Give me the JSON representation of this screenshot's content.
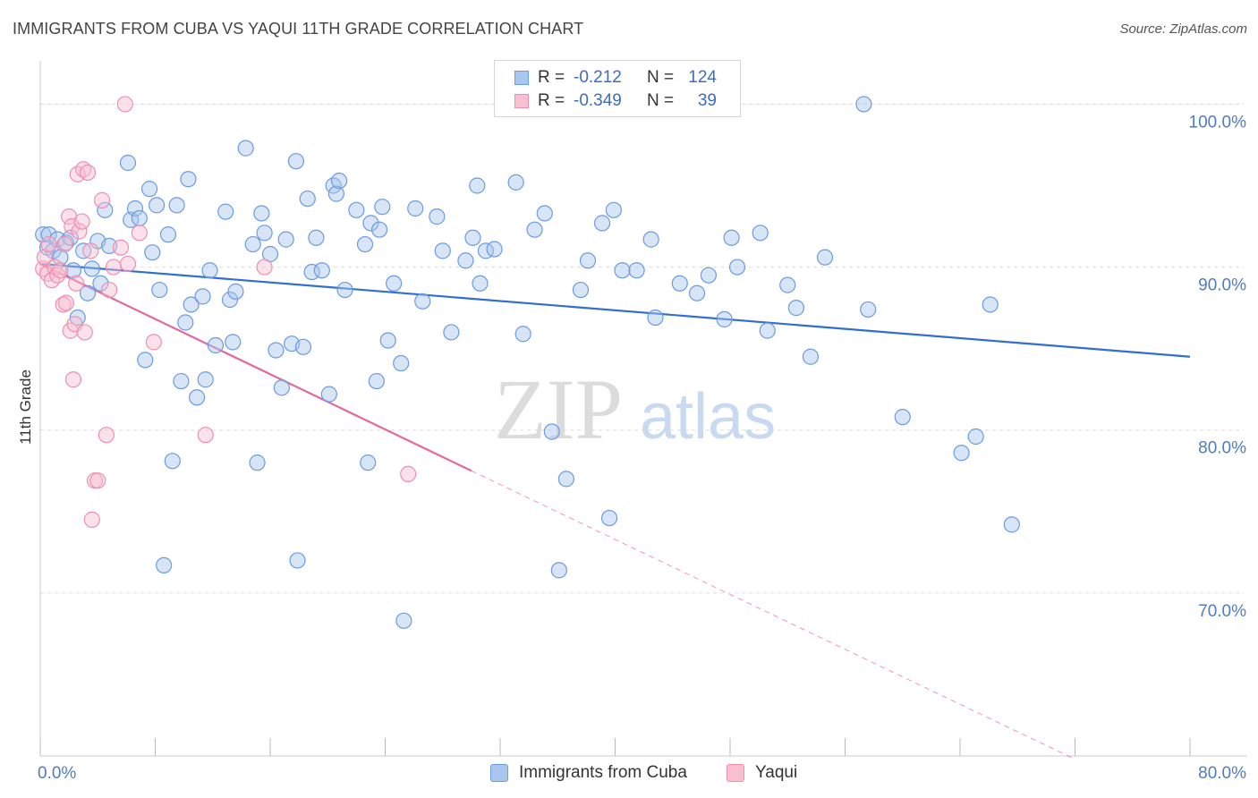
{
  "header": {
    "title": "IMMIGRANTS FROM CUBA VS YAQUI 11TH GRADE CORRELATION CHART",
    "source": "Source: ZipAtlas.com"
  },
  "watermark": {
    "zip": "ZIP",
    "atlas": "atlas"
  },
  "legend": {
    "rows": [
      {
        "r_label": "R =",
        "r_value": "-0.212",
        "n_label": "N =",
        "n_value": "124"
      },
      {
        "r_label": "R =",
        "r_value": "-0.349",
        "n_label": "N =",
        "n_value": "39"
      }
    ]
  },
  "chart_data": {
    "type": "scatter",
    "title": "IMMIGRANTS FROM CUBA VS YAQUI 11TH GRADE CORRELATION CHART",
    "ylabel": "11th Grade",
    "xlabel": "",
    "xlim": [
      0,
      80
    ],
    "ylim": [
      60,
      102
    ],
    "x_tick_labels": [
      "0.0%",
      "80.0%"
    ],
    "y_ticks": [
      70,
      80,
      90,
      100
    ],
    "y_tick_labels": [
      "70.0%",
      "80.0%",
      "90.0%",
      "100.0%"
    ],
    "grid": true,
    "legend_position": "top-center",
    "colors": {
      "cuba_fill": "#a9c6ee",
      "cuba_stroke": "#6b9be0",
      "cuba_line": "#2f6fce",
      "yaqui_fill": "#f7bfd0",
      "yaqui_stroke": "#ee8fb0",
      "yaqui_line": "#e4689a",
      "grid": "#dddddd",
      "axis_label": "#4f7cc4"
    },
    "series": [
      {
        "name": "Immigrants from Cuba",
        "stats": {
          "r": -0.212,
          "n": 124
        },
        "trend": {
          "x0": 0,
          "y0": 90.2,
          "x1": 80,
          "y1": 84.5
        },
        "points": [
          [
            0.2,
            92.0
          ],
          [
            0.5,
            91.2
          ],
          [
            0.6,
            92.0
          ],
          [
            0.9,
            91.0
          ],
          [
            1.2,
            91.7
          ],
          [
            1.4,
            90.6
          ],
          [
            1.8,
            91.5
          ],
          [
            2.1,
            91.8
          ],
          [
            2.3,
            89.8
          ],
          [
            2.6,
            86.9
          ],
          [
            3.0,
            91.0
          ],
          [
            3.3,
            88.4
          ],
          [
            3.6,
            89.9
          ],
          [
            4.0,
            91.6
          ],
          [
            4.2,
            89.0
          ],
          [
            4.5,
            93.5
          ],
          [
            4.8,
            91.3
          ],
          [
            6.1,
            96.4
          ],
          [
            6.3,
            92.9
          ],
          [
            6.6,
            93.6
          ],
          [
            6.9,
            93.0
          ],
          [
            7.3,
            84.3
          ],
          [
            7.6,
            94.8
          ],
          [
            7.8,
            90.9
          ],
          [
            8.1,
            93.8
          ],
          [
            8.3,
            88.6
          ],
          [
            8.6,
            71.7
          ],
          [
            8.9,
            92.0
          ],
          [
            9.2,
            78.1
          ],
          [
            9.5,
            93.8
          ],
          [
            9.8,
            83.0
          ],
          [
            10.1,
            86.6
          ],
          [
            10.3,
            95.4
          ],
          [
            10.5,
            87.7
          ],
          [
            10.9,
            82.0
          ],
          [
            11.3,
            88.2
          ],
          [
            11.5,
            83.1
          ],
          [
            11.8,
            89.8
          ],
          [
            12.2,
            85.2
          ],
          [
            12.9,
            93.4
          ],
          [
            13.2,
            88.0
          ],
          [
            13.4,
            85.4
          ],
          [
            13.6,
            88.5
          ],
          [
            14.3,
            97.3
          ],
          [
            14.8,
            91.4
          ],
          [
            15.1,
            78.0
          ],
          [
            15.4,
            93.3
          ],
          [
            15.6,
            92.1
          ],
          [
            16.0,
            90.8
          ],
          [
            16.4,
            84.9
          ],
          [
            16.8,
            82.6
          ],
          [
            17.1,
            91.7
          ],
          [
            17.5,
            85.3
          ],
          [
            17.8,
            96.5
          ],
          [
            17.9,
            72.0
          ],
          [
            18.3,
            85.1
          ],
          [
            18.6,
            94.2
          ],
          [
            18.9,
            89.7
          ],
          [
            19.2,
            91.8
          ],
          [
            19.6,
            89.8
          ],
          [
            20.1,
            82.2
          ],
          [
            20.4,
            95.0
          ],
          [
            20.6,
            94.5
          ],
          [
            20.8,
            95.3
          ],
          [
            21.2,
            88.6
          ],
          [
            22.0,
            93.5
          ],
          [
            22.6,
            91.4
          ],
          [
            22.8,
            78.0
          ],
          [
            23.0,
            92.7
          ],
          [
            23.4,
            83.0
          ],
          [
            23.6,
            92.3
          ],
          [
            23.8,
            93.7
          ],
          [
            24.2,
            85.5
          ],
          [
            24.6,
            89.0
          ],
          [
            25.1,
            84.1
          ],
          [
            25.3,
            68.3
          ],
          [
            26.1,
            93.6
          ],
          [
            26.6,
            87.9
          ],
          [
            27.6,
            93.1
          ],
          [
            28.0,
            91.0
          ],
          [
            28.6,
            86.0
          ],
          [
            29.6,
            90.4
          ],
          [
            30.1,
            91.8
          ],
          [
            30.4,
            95.0
          ],
          [
            30.6,
            89.0
          ],
          [
            31.0,
            91.0
          ],
          [
            31.6,
            91.1
          ],
          [
            33.1,
            95.2
          ],
          [
            33.6,
            85.9
          ],
          [
            34.4,
            92.3
          ],
          [
            35.1,
            93.3
          ],
          [
            35.6,
            79.9
          ],
          [
            36.1,
            71.4
          ],
          [
            36.6,
            77.0
          ],
          [
            37.6,
            88.6
          ],
          [
            38.1,
            90.4
          ],
          [
            39.1,
            92.7
          ],
          [
            39.6,
            74.6
          ],
          [
            39.9,
            93.5
          ],
          [
            40.5,
            89.8
          ],
          [
            41.5,
            89.8
          ],
          [
            42.5,
            91.7
          ],
          [
            42.8,
            86.9
          ],
          [
            44.5,
            89.0
          ],
          [
            45.7,
            88.4
          ],
          [
            46.5,
            89.5
          ],
          [
            47.6,
            86.8
          ],
          [
            48.1,
            91.8
          ],
          [
            48.5,
            90.0
          ],
          [
            50.1,
            92.1
          ],
          [
            50.6,
            86.1
          ],
          [
            52.0,
            88.9
          ],
          [
            52.6,
            87.5
          ],
          [
            53.6,
            84.5
          ],
          [
            54.6,
            90.6
          ],
          [
            57.3,
            100.0
          ],
          [
            57.6,
            87.4
          ],
          [
            60.0,
            80.8
          ],
          [
            64.1,
            78.6
          ],
          [
            65.1,
            79.6
          ],
          [
            66.1,
            87.7
          ],
          [
            67.6,
            74.2
          ]
        ]
      },
      {
        "name": "Yaqui",
        "stats": {
          "r": -0.349,
          "n": 39
        },
        "trend": {
          "x0": 0,
          "y0": 90.2,
          "x1": 30,
          "y1": 77.5,
          "dash_x1": 72,
          "dash_y1": 59.8
        },
        "points": [
          [
            0.2,
            89.9
          ],
          [
            0.3,
            90.6
          ],
          [
            0.5,
            89.6
          ],
          [
            0.6,
            91.4
          ],
          [
            0.8,
            89.2
          ],
          [
            1.0,
            90.0
          ],
          [
            1.2,
            89.5
          ],
          [
            1.4,
            89.8
          ],
          [
            1.6,
            87.7
          ],
          [
            1.7,
            91.4
          ],
          [
            1.8,
            87.8
          ],
          [
            2.0,
            93.1
          ],
          [
            2.1,
            86.1
          ],
          [
            2.2,
            92.5
          ],
          [
            2.3,
            83.1
          ],
          [
            2.4,
            86.5
          ],
          [
            2.5,
            89.0
          ],
          [
            2.6,
            95.7
          ],
          [
            2.7,
            92.2
          ],
          [
            2.9,
            92.8
          ],
          [
            3.0,
            96.0
          ],
          [
            3.1,
            86.0
          ],
          [
            3.3,
            95.8
          ],
          [
            3.5,
            91.0
          ],
          [
            3.6,
            74.5
          ],
          [
            3.8,
            76.9
          ],
          [
            4.0,
            76.9
          ],
          [
            4.3,
            94.1
          ],
          [
            4.6,
            79.7
          ],
          [
            4.8,
            88.6
          ],
          [
            5.1,
            90.0
          ],
          [
            5.6,
            91.2
          ],
          [
            5.9,
            100.0
          ],
          [
            6.1,
            90.2
          ],
          [
            6.9,
            92.1
          ],
          [
            7.9,
            85.4
          ],
          [
            11.5,
            79.7
          ],
          [
            15.6,
            90.0
          ],
          [
            25.6,
            77.3
          ]
        ]
      }
    ]
  },
  "bottom_legend": {
    "items": [
      {
        "label": "Immigrants from Cuba"
      },
      {
        "label": "Yaqui"
      }
    ]
  }
}
